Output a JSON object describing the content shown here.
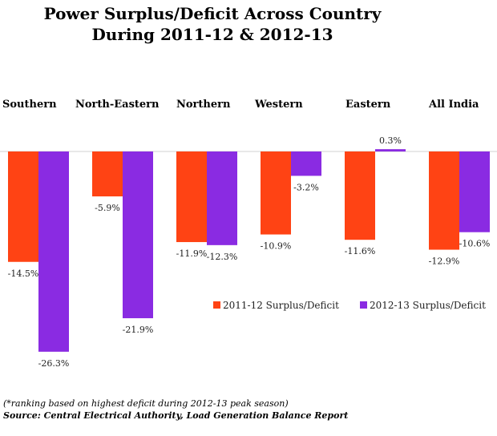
{
  "chart_data": {
    "type": "bar",
    "title": [
      "Power Surplus/Deficit Across Country",
      "During 2011-12 & 2012-13"
    ],
    "categories": [
      "Southern",
      "North-Eastern",
      "Northern",
      "Western",
      "Eastern",
      "All India"
    ],
    "series": [
      {
        "name": "2011-12 Surplus/Deficit",
        "color": "#ff4314",
        "values": [
          -14.5,
          -5.9,
          -11.9,
          -10.9,
          -11.6,
          -12.9
        ]
      },
      {
        "name": "2012-13 Surplus/Deficit",
        "color": "#8a2be2",
        "values": [
          -26.3,
          -21.9,
          -12.3,
          -3.2,
          0.3,
          -10.6
        ]
      }
    ],
    "value_labels": [
      [
        "-14.5%",
        "-5.9%",
        "-11.9%",
        "-10.9%",
        "-11.6%",
        "-12.9%"
      ],
      [
        "-26.3%",
        "-21.9%",
        "-12.3%",
        "-3.2%",
        "0.3%",
        "-10.6%"
      ]
    ],
    "legend_position": "inside-right",
    "category_label_position": "top",
    "grid": false,
    "ylim": [
      -28,
      2
    ]
  },
  "footnote": "(*ranking based on highest deficit during 2012-13 peak season)",
  "source": "Source: Central Electrical Authority, Load Generation Balance Report"
}
